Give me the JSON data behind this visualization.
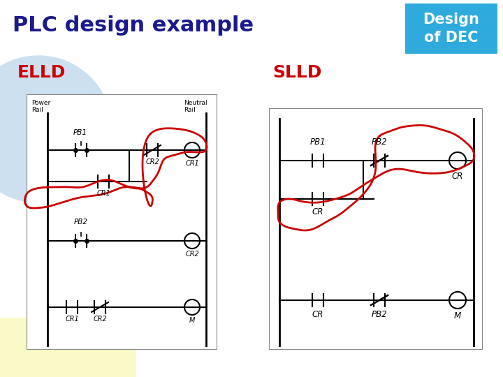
{
  "title": "PLC design example",
  "title_color": "#1a1a8c",
  "title_fontsize": 22,
  "badge_text": "Design\nof DEC",
  "badge_bg": "#2eaadc",
  "badge_text_color": "white",
  "badge_fontsize": 15,
  "elld_label": "ELLD",
  "slld_label": "SLLD",
  "label_color": "#cc0000",
  "label_fontsize": 18,
  "bg_color": "#ffffff",
  "blue_circle_color": "#cce0f0",
  "yellow_rect_color": "#fafac8",
  "diagram_bg": "#f5f5f0",
  "red_curve_color": "#cc0000",
  "red_lw": 2.0
}
